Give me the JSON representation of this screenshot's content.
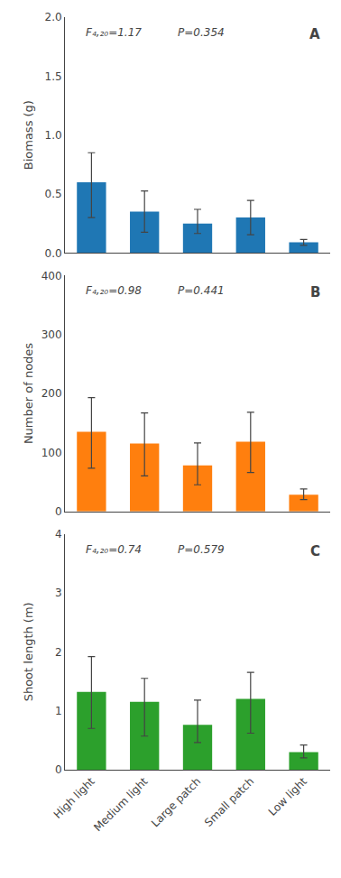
{
  "chart_data": [
    {
      "type": "bar",
      "title": "A",
      "ylabel": "Biomass (g)",
      "categories": [
        "High light",
        "Medium light",
        "Large patch",
        "Small patch",
        "Low light"
      ],
      "values": [
        0.6,
        0.35,
        0.25,
        0.3,
        0.09
      ],
      "errors_low": [
        0.3,
        0.175,
        0.085,
        0.145,
        0.025
      ],
      "errors_high": [
        0.25,
        0.175,
        0.12,
        0.145,
        0.025
      ],
      "ylim": [
        0,
        2.0
      ],
      "yticks": [
        {
          "value": 0,
          "label": "0.0"
        },
        0.5,
        {
          "value": 1,
          "label": "1.0"
        },
        1.5,
        {
          "value": 2,
          "label": "2.0"
        }
      ],
      "annotations": [
        "F₄,₂₀=1.17",
        "P=0.354"
      ],
      "grid": false,
      "tick_labels": "y"
    },
    {
      "type": "bar",
      "title": "B",
      "ylabel": "Number of nodes",
      "categories": [
        "High light",
        "Medium light",
        "Large patch",
        "Small patch",
        "Low light"
      ],
      "values": [
        135,
        115,
        78,
        118,
        28
      ],
      "errors_low": [
        62,
        55,
        33,
        52,
        8
      ],
      "errors_high": [
        58,
        52,
        38,
        50,
        10
      ],
      "ylim": [
        0,
        400
      ],
      "yticks": [
        0,
        100,
        200,
        300,
        400
      ],
      "annotations": [
        "F₄,₂₀=0.98",
        "P=0.441"
      ],
      "grid": false,
      "tick_labels": "y"
    },
    {
      "type": "bar",
      "title": "C",
      "ylabel": "Shoot length (m)",
      "categories": [
        "High light",
        "Medium light",
        "Large patch",
        "Small patch",
        "Low light"
      ],
      "values": [
        1.32,
        1.15,
        0.76,
        1.2,
        0.3
      ],
      "errors_low": [
        0.62,
        0.58,
        0.3,
        0.58,
        0.1
      ],
      "errors_high": [
        0.6,
        0.4,
        0.42,
        0.45,
        0.12
      ],
      "ylim": [
        0,
        4
      ],
      "yticks": [
        0,
        1,
        2,
        3,
        4
      ],
      "annotations": [
        "F₄,₂₀=0.74",
        "P=0.579"
      ],
      "grid": false
    }
  ]
}
